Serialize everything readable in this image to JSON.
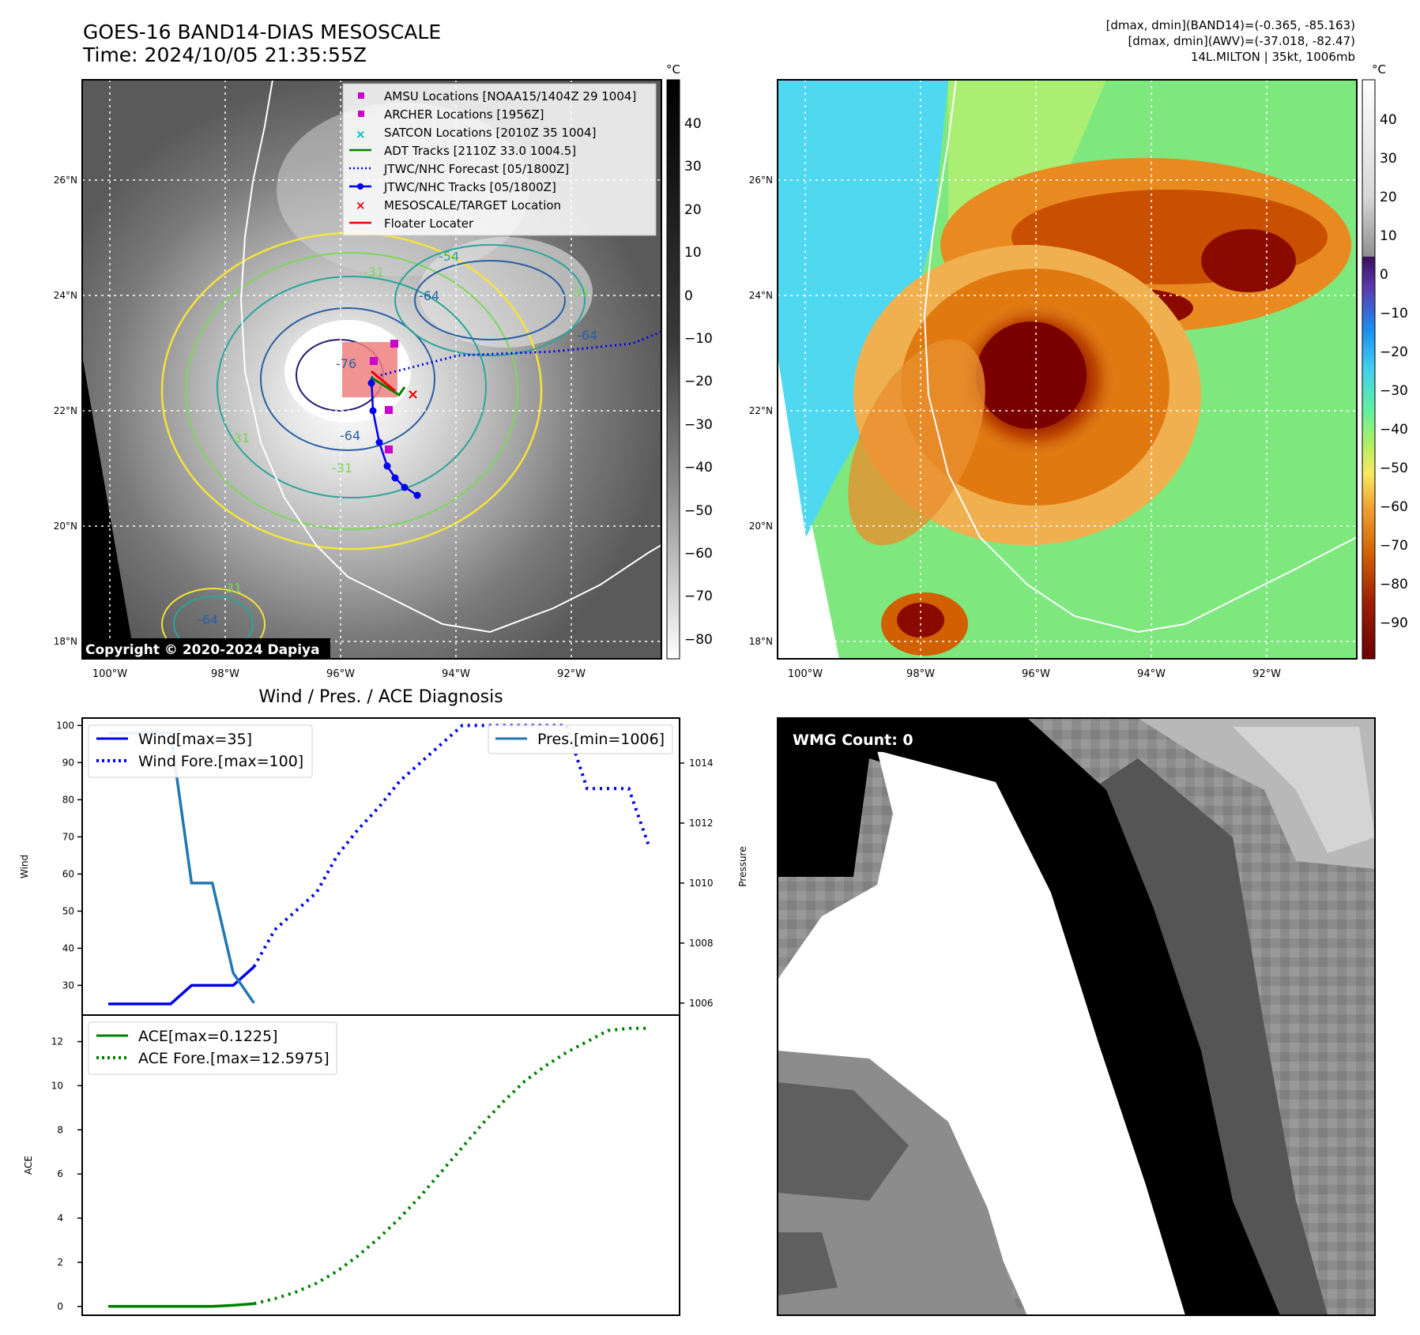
{
  "header": {
    "title_line1": "GOES-16 BAND14-DIAS MESOSCALE",
    "title_line2": "Time: 2024/10/05 21:35:55Z",
    "right_line1": "[dmax, dmin](BAND14)=(-0.365, -85.163)",
    "right_line2": "[dmax, dmin](AWV)=(-37.018, -82.47)",
    "right_line3": "14L.MILTON | 35kt, 1006mb"
  },
  "ir_map": {
    "lat_labels": [
      "26°N",
      "24°N",
      "22°N",
      "20°N",
      "18°N"
    ],
    "lon_labels": [
      "100°W",
      "98°W",
      "96°W",
      "94°W",
      "92°W"
    ],
    "copyright": "Copyright © 2020-2024 Dapiya",
    "contour_labels": [
      "-76",
      "-64",
      "-64",
      "-31",
      "-31",
      "-54",
      "-31",
      "-64",
      "-31",
      "-64",
      "-31"
    ],
    "legend": [
      {
        "label": "AMSU Locations [NOAA15/1404Z 29 1004]",
        "color": "#cc00cc",
        "marker": "square"
      },
      {
        "label": "ARCHER Locations [1956Z]",
        "color": "#cc00cc",
        "marker": "square"
      },
      {
        "label": "SATCON Locations [2010Z 35 1004]",
        "color": "#00bbbb",
        "marker": "x"
      },
      {
        "label": "ADT Tracks [2110Z 33.0 1004.5]",
        "color": "#008000",
        "marker": "line"
      },
      {
        "label": "JTWC/NHC Forecast [05/1800Z]",
        "color": "#0000ee",
        "marker": "dotted"
      },
      {
        "label": "JTWC/NHC Tracks [05/1800Z]",
        "color": "#0000ee",
        "marker": "line-dot"
      },
      {
        "label": "MESOSCALE/TARGET Location",
        "color": "#ee0000",
        "marker": "x"
      },
      {
        "label": "Floater Locater",
        "color": "#ee0000",
        "marker": "line"
      }
    ],
    "colorbar": {
      "unit": "°C",
      "ticks": [
        "40",
        "30",
        "20",
        "10",
        "0",
        "−10",
        "−20",
        "−30",
        "−40",
        "−50",
        "−60",
        "−70",
        "−80"
      ]
    }
  },
  "awv_map": {
    "lat_labels": [
      "26°N",
      "24°N",
      "22°N",
      "20°N",
      "18°N"
    ],
    "lon_labels": [
      "100°W",
      "98°W",
      "96°W",
      "94°W",
      "92°W"
    ],
    "colorbar": {
      "unit": "°C",
      "ticks": [
        "40",
        "30",
        "20",
        "10",
        "0",
        "−10",
        "−20",
        "−30",
        "−40",
        "−50",
        "−60",
        "−70",
        "−80",
        "−90"
      ]
    }
  },
  "wmg_panel": {
    "label": "WMG Count: 0"
  },
  "chart_data": [
    {
      "type": "line",
      "title": "Wind / Pres. / ACE Diagnosis",
      "ylabel": "Wind",
      "ylabel2": "Pressure",
      "ylim": [
        22,
        102
      ],
      "ylim2": [
        1005.6,
        1015.5
      ],
      "yticks": [
        30,
        40,
        50,
        60,
        70,
        80,
        90,
        100
      ],
      "yticks2": [
        1006,
        1008,
        1010,
        1012,
        1014
      ],
      "x": [
        0,
        1,
        2,
        3,
        4,
        5,
        6,
        7,
        8,
        9,
        10,
        11,
        12,
        13,
        14,
        15,
        16,
        17,
        18,
        19,
        20,
        21,
        22,
        23,
        24,
        25,
        26
      ],
      "series": [
        {
          "name": "Wind[max=35]",
          "style": "solid",
          "color": "#0000ee",
          "axis": "left",
          "x": [
            0,
            1,
            2,
            3,
            4,
            5,
            6,
            7
          ],
          "values": [
            25,
            25,
            25,
            25,
            30,
            30,
            30,
            35
          ]
        },
        {
          "name": "Wind Fore.[max=100]",
          "style": "dotted",
          "color": "#0000ee",
          "axis": "left",
          "x": [
            7,
            8,
            9,
            10,
            11,
            12,
            13,
            14,
            15,
            16,
            17,
            18,
            19,
            20,
            21,
            22,
            23,
            24,
            25,
            26
          ],
          "values": [
            35,
            45,
            50,
            55,
            65,
            72,
            78,
            85,
            90,
            95,
            100,
            100,
            100,
            100,
            100,
            100,
            83,
            83,
            83,
            67
          ]
        },
        {
          "name": "Pres.[min=1006]",
          "style": "solid",
          "color": "#1f77b4",
          "axis": "right",
          "x": [
            0,
            1,
            2,
            3,
            4,
            5,
            6,
            7
          ],
          "values": [
            1015,
            1015,
            1015,
            1015,
            1010,
            1010,
            1007,
            1006
          ]
        }
      ],
      "legend_left": [
        "Wind[max=35]",
        "Wind Fore.[max=100]"
      ],
      "legend_right": [
        "Pres.[min=1006]"
      ]
    },
    {
      "type": "line",
      "ylabel": "ACE",
      "ylim": [
        -0.4,
        13.2
      ],
      "yticks": [
        0,
        2,
        4,
        6,
        8,
        10,
        12
      ],
      "series": [
        {
          "name": "ACE[max=0.1225]",
          "style": "solid",
          "color": "#008000",
          "x": [
            0,
            1,
            2,
            3,
            4,
            5,
            6,
            7
          ],
          "values": [
            0,
            0,
            0,
            0,
            0,
            0,
            0.05,
            0.1225
          ]
        },
        {
          "name": "ACE Fore.[max=12.5975]",
          "style": "dotted",
          "color": "#008000",
          "x": [
            7,
            8,
            9,
            10,
            11,
            12,
            13,
            14,
            15,
            16,
            17,
            18,
            19,
            20,
            21,
            22,
            23,
            24,
            25,
            26
          ],
          "values": [
            0.1225,
            0.35,
            0.65,
            1.05,
            1.6,
            2.3,
            3.1,
            4.0,
            5.0,
            6.1,
            7.2,
            8.3,
            9.3,
            10.2,
            10.9,
            11.5,
            12.0,
            12.5,
            12.6,
            12.5975
          ]
        }
      ],
      "legend": [
        "ACE[max=0.1225]",
        "ACE Fore.[max=12.5975]"
      ]
    }
  ]
}
